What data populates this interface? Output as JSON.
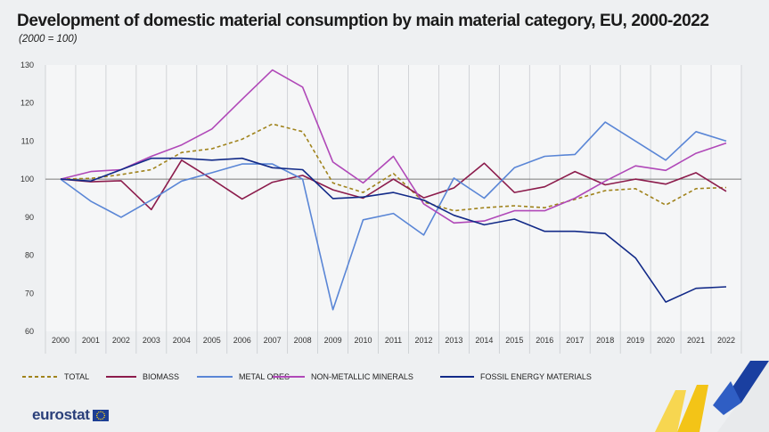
{
  "header": {
    "title": "Development of domestic material consumption by main material category, EU, 2000-2022",
    "subtitle": "(2000 = 100)"
  },
  "chart_data": {
    "type": "line",
    "title": "Development of domestic material consumption by main material category, EU, 2000-2022",
    "subtitle": "(2000 = 100)",
    "xlabel": "",
    "ylabel": "",
    "ylim": [
      60,
      130
    ],
    "yticks": [
      "60",
      "70",
      "80",
      "90",
      "100",
      "110",
      "120",
      "130"
    ],
    "reference_line": 100,
    "categories": [
      "2000",
      "2001",
      "2002",
      "2003",
      "2004",
      "2005",
      "2006",
      "2007",
      "2008",
      "2009",
      "2010",
      "2011",
      "2012",
      "2013",
      "2014",
      "2015",
      "2016",
      "2017",
      "2018",
      "2019",
      "2020",
      "2021",
      "2022"
    ],
    "series": [
      {
        "name": "TOTAL",
        "color": "#a0831c",
        "dashed": true,
        "values": [
          100,
          100.2,
          101.2,
          102.5,
          107,
          108,
          110.5,
          114.5,
          112.5,
          99,
          96.5,
          101.5,
          94,
          91.7,
          92.5,
          93,
          92.5,
          94.7,
          97,
          97.5,
          93.2,
          97.5,
          97.8
        ]
      },
      {
        "name": "BIOMASS",
        "color": "#8c1c4c",
        "dashed": false,
        "values": [
          100,
          99.3,
          99.6,
          92,
          105,
          100,
          94.8,
          99.2,
          101,
          97.2,
          95,
          100,
          95.1,
          97.7,
          104.2,
          96.5,
          98,
          102,
          98.5,
          100,
          98.7,
          101.7,
          96.8
        ]
      },
      {
        "name": "METAL ORES",
        "color": "#5a86d6",
        "dashed": false,
        "values": [
          100,
          94.2,
          90,
          94.5,
          99.5,
          101.7,
          104,
          104,
          100,
          65.7,
          89.3,
          91,
          85.3,
          100.3,
          95,
          103,
          106,
          106.5,
          115,
          110,
          105,
          112.5,
          110
        ]
      },
      {
        "name": "NON-METALLIC MINERALS",
        "color": "#b048b8",
        "dashed": false,
        "values": [
          100,
          102,
          102.5,
          106,
          109,
          113.2,
          121,
          128.7,
          124.2,
          104.5,
          99,
          106,
          93.5,
          88.5,
          89,
          91.7,
          91.7,
          95,
          99.5,
          103.5,
          102.3,
          106.8,
          109.5
        ]
      },
      {
        "name": "FOSSIL ENERGY MATERIALS",
        "color": "#122a88",
        "dashed": false,
        "values": [
          100,
          99.5,
          102.5,
          105.5,
          105.5,
          105,
          105.5,
          103,
          102.5,
          94.9,
          95.3,
          96.5,
          94.5,
          90.5,
          88,
          89.5,
          86.3,
          86.3,
          85.7,
          79.3,
          67.7,
          71.3,
          71.7
        ]
      }
    ]
  },
  "footer": {
    "brand": "eurostat"
  }
}
